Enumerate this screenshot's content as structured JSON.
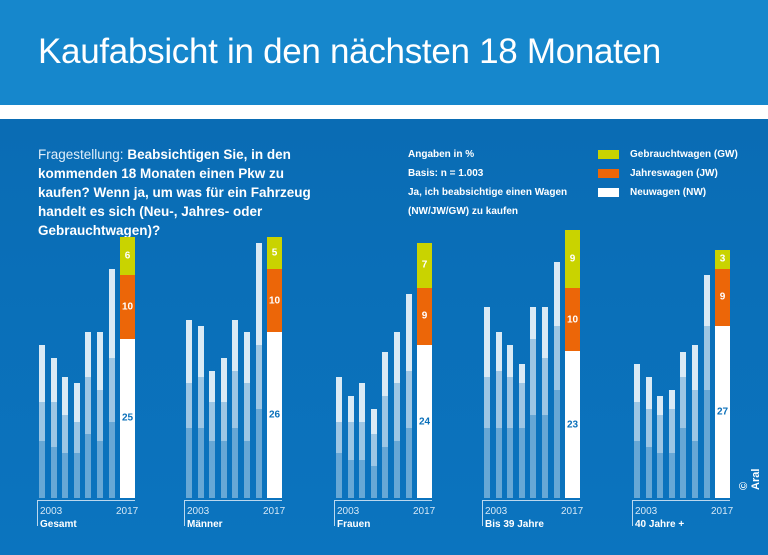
{
  "title": "Kaufabsicht in den nächsten 18 Monaten",
  "question": {
    "label": "Fragestellung:",
    "text": "Beabsichtigen Sie, in den kommenden 18 Monaten einen Pkw zu kaufen? Wenn ja, um was für ein Fahrzeug handelt es sich (Neu-, Jahres- oder Gebrauchtwagen)?"
  },
  "notes": [
    "Angaben in %",
    "Basis: n = 1.003",
    "Ja, ich beabsichtige einen Wagen",
    "(NW/JW/GW) zu kaufen"
  ],
  "copyright": "© Aral",
  "chart_data": {
    "type": "bar",
    "stacked": true,
    "legend": [
      {
        "name": "Gebrauchtwagen (GW)",
        "color": "#c9d300"
      },
      {
        "name": "Jahreswagen (JW)",
        "color": "#ec6608"
      },
      {
        "name": "Neuwagen (NW)",
        "color": "#ffffff"
      }
    ],
    "legend_position": "top-right",
    "x_start_label": "2003",
    "x_end_label": "2017",
    "groups": [
      {
        "name": "Gesamt",
        "history_totals": [
          24,
          22,
          19,
          18,
          26,
          26,
          36
        ],
        "history_segments": [
          [
            9,
            6,
            9
          ],
          [
            8,
            7,
            7
          ],
          [
            7,
            6,
            6
          ],
          [
            7,
            5,
            6
          ],
          [
            10,
            9,
            7
          ],
          [
            9,
            8,
            9
          ],
          [
            12,
            10,
            14
          ]
        ],
        "latest": {
          "NW": 25,
          "JW": 10,
          "GW": 6
        }
      },
      {
        "name": "Männer",
        "history_totals": [
          28,
          27,
          20,
          22,
          28,
          26,
          40
        ],
        "history_segments": [
          [
            11,
            7,
            10
          ],
          [
            11,
            8,
            8
          ],
          [
            9,
            6,
            5
          ],
          [
            9,
            6,
            7
          ],
          [
            11,
            9,
            8
          ],
          [
            9,
            9,
            8
          ],
          [
            14,
            10,
            16
          ]
        ],
        "latest": {
          "NW": 26,
          "JW": 10,
          "GW": 5
        }
      },
      {
        "name": "Frauen",
        "history_totals": [
          19,
          16,
          18,
          14,
          23,
          26,
          32
        ],
        "history_segments": [
          [
            7,
            5,
            7
          ],
          [
            6,
            6,
            4
          ],
          [
            6,
            6,
            6
          ],
          [
            5,
            5,
            4
          ],
          [
            8,
            8,
            7
          ],
          [
            9,
            9,
            8
          ],
          [
            11,
            9,
            12
          ]
        ],
        "latest": {
          "NW": 24,
          "JW": 9,
          "GW": 7
        }
      },
      {
        "name": "Bis 39 Jahre",
        "history_totals": [
          30,
          26,
          24,
          21,
          30,
          30,
          37
        ],
        "history_segments": [
          [
            11,
            8,
            11
          ],
          [
            11,
            9,
            6
          ],
          [
            11,
            8,
            5
          ],
          [
            11,
            7,
            3
          ],
          [
            13,
            12,
            5
          ],
          [
            13,
            9,
            8
          ],
          [
            17,
            10,
            10
          ]
        ],
        "latest": {
          "NW": 23,
          "JW": 10,
          "GW": 9
        }
      },
      {
        "name": "40 Jahre +",
        "history_totals": [
          21,
          19,
          16,
          17,
          23,
          24,
          35
        ],
        "history_segments": [
          [
            9,
            6,
            6
          ],
          [
            8,
            6,
            5
          ],
          [
            7,
            6,
            3
          ],
          [
            7,
            7,
            3
          ],
          [
            11,
            8,
            4
          ],
          [
            9,
            8,
            7
          ],
          [
            17,
            10,
            8
          ]
        ],
        "latest": {
          "NW": 27,
          "JW": 9,
          "GW": 3
        }
      }
    ]
  }
}
